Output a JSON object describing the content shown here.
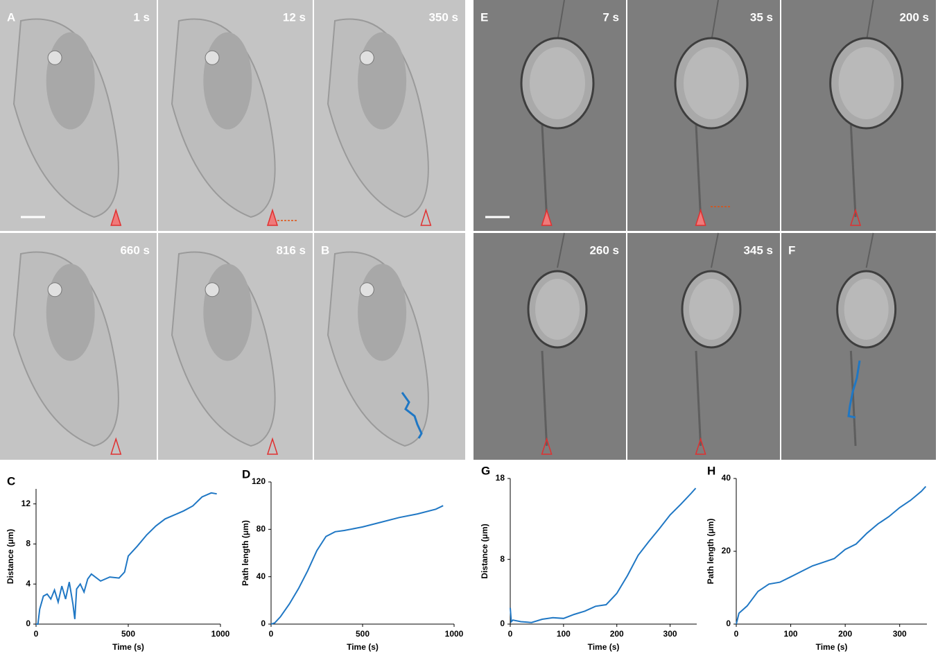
{
  "image_panels": [
    {
      "letter": "A",
      "time": "1 s"
    },
    {
      "time": "12 s"
    },
    {
      "time": "350 s"
    },
    {
      "time": "660 s"
    },
    {
      "time": "816 s"
    },
    {
      "letter": "B"
    },
    {
      "letter": "E",
      "time": "7 s"
    },
    {
      "time": "35 s"
    },
    {
      "time": "200 s"
    },
    {
      "time": "260 s"
    },
    {
      "time": "345 s"
    },
    {
      "letter": "F"
    }
  ],
  "chart_data": [
    {
      "type": "line",
      "label": "C",
      "xlabel": "Time (s)",
      "ylabel": "Distance (μm)",
      "x": [
        0,
        10,
        20,
        40,
        60,
        80,
        100,
        120,
        140,
        160,
        180,
        200,
        210,
        220,
        240,
        260,
        280,
        300,
        350,
        400,
        450,
        480,
        500,
        550,
        600,
        650,
        700,
        750,
        800,
        850,
        900,
        950,
        980
      ],
      "series": [
        {
          "color": "#1f77c4",
          "values": [
            0,
            0,
            1.5,
            2.8,
            3,
            2.5,
            3.4,
            2.2,
            3.8,
            2.5,
            4.2,
            2.0,
            0.5,
            3.5,
            4.0,
            3.2,
            4.5,
            5.0,
            4.3,
            4.7,
            4.6,
            5.2,
            6.8,
            7.8,
            8.9,
            9.8,
            10.5,
            10.9,
            11.3,
            11.8,
            12.7,
            13.1,
            13.0
          ]
        }
      ],
      "xlim": [
        0,
        1000
      ],
      "xticks": [
        0,
        500,
        1000
      ],
      "ylim": [
        0,
        13.5
      ],
      "yticks": [
        0,
        4,
        8,
        12
      ]
    },
    {
      "type": "line",
      "label": "D",
      "xlabel": "Time (s)",
      "ylabel": "Path length (μm)",
      "x": [
        0,
        20,
        50,
        100,
        150,
        200,
        250,
        300,
        350,
        400,
        500,
        600,
        700,
        800,
        900,
        940
      ],
      "series": [
        {
          "color": "#1f77c4",
          "values": [
            0,
            1,
            6,
            17,
            30,
            45,
            62,
            74,
            78,
            79,
            82,
            86,
            90,
            93,
            97,
            100
          ]
        }
      ],
      "xlim": [
        0,
        1000
      ],
      "xticks": [
        0,
        500,
        1000
      ],
      "ylim": [
        0,
        120
      ],
      "yticks": [
        0,
        40,
        80,
        120
      ]
    },
    {
      "type": "line",
      "label": "G",
      "xlabel": "Time (s)",
      "ylabel": "Distance (μm)",
      "x": [
        0,
        2,
        5,
        20,
        40,
        60,
        80,
        100,
        120,
        140,
        160,
        180,
        200,
        220,
        240,
        260,
        280,
        300,
        320,
        340,
        348
      ],
      "series": [
        {
          "color": "#1f77c4",
          "values": [
            2,
            0.3,
            0.5,
            0.3,
            0.2,
            0.6,
            0.8,
            0.7,
            1.2,
            1.6,
            2.2,
            2.4,
            3.8,
            6,
            8.5,
            10.2,
            11.8,
            13.5,
            14.8,
            16.2,
            16.8
          ]
        }
      ],
      "xlim": [
        0,
        350
      ],
      "xticks": [
        0,
        100,
        200,
        300
      ],
      "ylim": [
        0,
        18
      ],
      "yticks": [
        0,
        8,
        18
      ]
    },
    {
      "type": "line",
      "label": "H",
      "xlabel": "Time (s)",
      "ylabel": "Path length (μm)",
      "x": [
        0,
        5,
        20,
        40,
        60,
        80,
        100,
        120,
        140,
        160,
        180,
        200,
        220,
        240,
        260,
        280,
        300,
        320,
        340,
        348
      ],
      "series": [
        {
          "color": "#1f77c4",
          "values": [
            0,
            3,
            5,
            9,
            11,
            11.5,
            13,
            14.5,
            16,
            17,
            18,
            20.5,
            22,
            25,
            27.5,
            29.5,
            32,
            34,
            36.5,
            37.8
          ]
        }
      ],
      "xlim": [
        0,
        350
      ],
      "xticks": [
        0,
        100,
        200,
        300
      ],
      "ylim": [
        0,
        40
      ],
      "yticks": [
        0,
        20,
        40
      ]
    }
  ]
}
